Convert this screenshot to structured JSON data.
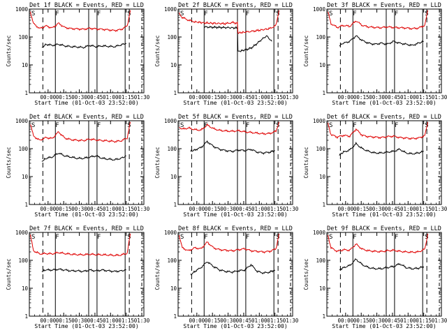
{
  "figure": {
    "ylabel": "Counts/sec",
    "xlabel": "Start Time (01-Oct-03 23:52:00)",
    "x_ticks": [
      "00:00",
      "00:15",
      "00:30",
      "00:45",
      "01:00",
      "01:15",
      "01:30"
    ],
    "y_ticks": [
      "1",
      "10",
      "100",
      "1000"
    ],
    "marker_labels": {
      "saa_start": "S",
      "flare": "F",
      "saa_end": "S"
    },
    "colors": {
      "events": "#000000",
      "lld": "#e00000"
    }
  },
  "chart_data": [
    {
      "type": "line",
      "title": "Det 1f BLACK = Events, RED = LLD",
      "ylim": [
        1,
        1000
      ],
      "yscale": "log",
      "xlim_minutes": [
        -10,
        100
      ],
      "x_ticks_minutes": [
        8,
        23,
        38,
        53,
        68,
        83,
        98
      ],
      "markers": {
        "dashed": [
          3,
          86
        ],
        "dotted": [
          98
        ],
        "solid": [
          15,
          47,
          55,
          82
        ],
        "labels": [
          {
            "x": -8,
            "text": "S"
          },
          {
            "x": 15,
            "text": "F"
          },
          {
            "x": 55,
            "text": "F"
          },
          {
            "x": 84,
            "text": "S"
          }
        ]
      },
      "series": [
        {
          "role": "events",
          "x": [
            2,
            6,
            12,
            18,
            24,
            30,
            36,
            42,
            48,
            54,
            60,
            66,
            72,
            78,
            83
          ],
          "y": [
            40,
            55,
            50,
            55,
            48,
            45,
            44,
            42,
            50,
            45,
            48,
            46,
            45,
            52,
            60
          ]
        },
        {
          "role": "lld",
          "x": [
            -9,
            -6,
            0,
            6,
            12,
            18,
            24,
            30,
            36,
            42,
            48,
            54,
            60,
            66,
            72,
            78,
            84,
            87
          ],
          "y": [
            800,
            300,
            200,
            250,
            210,
            310,
            220,
            200,
            195,
            190,
            205,
            195,
            190,
            180,
            170,
            185,
            250,
            900
          ]
        }
      ]
    },
    {
      "type": "line",
      "title": "Det 2f BLACK = Events, RED = LLD",
      "ylim": [
        1,
        1000
      ],
      "yscale": "log",
      "xlim_minutes": [
        -10,
        100
      ],
      "x_ticks_minutes": [
        8,
        23,
        38,
        53,
        68,
        83,
        98
      ],
      "markers": {
        "dashed": [
          3,
          86
        ],
        "dotted": [
          98
        ],
        "solid": [
          15,
          47,
          55,
          82
        ],
        "labels": [
          {
            "x": -8,
            "text": "S"
          },
          {
            "x": 15,
            "text": "F"
          },
          {
            "x": 55,
            "text": "F"
          },
          {
            "x": 84,
            "text": "S"
          }
        ]
      },
      "series": [
        {
          "role": "events",
          "x": [
            15,
            20,
            30,
            40,
            47,
            47.5,
            55,
            60,
            65,
            70,
            75,
            80
          ],
          "y": [
            230,
            225,
            220,
            215,
            210,
            30,
            35,
            40,
            55,
            80,
            110,
            70
          ]
        },
        {
          "role": "lld",
          "x": [
            -9,
            -6,
            0,
            6,
            15,
            24,
            36,
            42,
            47,
            47.5,
            55,
            66,
            78,
            84,
            87
          ],
          "y": [
            700,
            500,
            400,
            350,
            320,
            310,
            300,
            330,
            310,
            140,
            150,
            170,
            200,
            260,
            900
          ]
        }
      ]
    },
    {
      "type": "line",
      "title": "Det 3f BLACK = Events, RED = LLD",
      "ylim": [
        1,
        1000
      ],
      "yscale": "log",
      "xlim_minutes": [
        -10,
        100
      ],
      "x_ticks_minutes": [
        8,
        23,
        38,
        53,
        68,
        83,
        98
      ],
      "markers": {
        "dashed": [
          3,
          86
        ],
        "dotted": [
          98
        ],
        "solid": [
          15,
          47,
          55,
          82
        ],
        "labels": [
          {
            "x": -8,
            "text": "S"
          },
          {
            "x": 15,
            "text": "F"
          },
          {
            "x": 55,
            "text": "F"
          },
          {
            "x": 84,
            "text": "S"
          }
        ]
      },
      "series": [
        {
          "role": "events",
          "x": [
            2,
            6,
            12,
            18,
            24,
            30,
            36,
            42,
            48,
            54,
            60,
            66,
            72,
            78,
            83
          ],
          "y": [
            50,
            60,
            70,
            110,
            75,
            60,
            55,
            60,
            55,
            70,
            60,
            55,
            50,
            60,
            70
          ]
        },
        {
          "role": "lld",
          "x": [
            -9,
            -6,
            0,
            6,
            12,
            18,
            24,
            30,
            36,
            42,
            48,
            54,
            60,
            66,
            72,
            78,
            84,
            87
          ],
          "y": [
            800,
            300,
            220,
            260,
            240,
            380,
            260,
            230,
            220,
            215,
            230,
            220,
            215,
            210,
            200,
            210,
            260,
            900
          ]
        }
      ]
    },
    {
      "type": "line",
      "title": "Det 4f BLACK = Events, RED = LLD",
      "ylim": [
        1,
        1000
      ],
      "yscale": "log",
      "xlim_minutes": [
        -10,
        100
      ],
      "x_ticks_minutes": [
        8,
        23,
        38,
        53,
        68,
        83,
        98
      ],
      "markers": {
        "dashed": [
          3,
          86
        ],
        "dotted": [
          98
        ],
        "solid": [
          15,
          47,
          55,
          82
        ],
        "labels": [
          {
            "x": -8,
            "text": "S"
          },
          {
            "x": 15,
            "text": "F"
          },
          {
            "x": 55,
            "text": "F"
          },
          {
            "x": 84,
            "text": "S"
          }
        ]
      },
      "series": [
        {
          "role": "events",
          "x": [
            2,
            6,
            12,
            18,
            24,
            30,
            36,
            42,
            48,
            54,
            60,
            66,
            72,
            78,
            83
          ],
          "y": [
            35,
            45,
            50,
            70,
            55,
            50,
            45,
            45,
            50,
            55,
            45,
            42,
            40,
            45,
            55
          ]
        },
        {
          "role": "lld",
          "x": [
            -9,
            -6,
            0,
            6,
            12,
            18,
            24,
            30,
            36,
            42,
            48,
            54,
            60,
            66,
            72,
            78,
            84,
            87
          ],
          "y": [
            800,
            280,
            200,
            250,
            230,
            400,
            240,
            210,
            200,
            195,
            220,
            205,
            195,
            190,
            180,
            190,
            240,
            900
          ]
        }
      ]
    },
    {
      "type": "line",
      "title": "Det 5f BLACK = Events, RED = LLD",
      "ylim": [
        1,
        1000
      ],
      "yscale": "log",
      "xlim_minutes": [
        -10,
        100
      ],
      "x_ticks_minutes": [
        8,
        23,
        38,
        53,
        68,
        83,
        98
      ],
      "markers": {
        "dashed": [
          3,
          86
        ],
        "dotted": [
          98
        ],
        "solid": [
          15,
          47,
          55,
          82
        ],
        "labels": [
          {
            "x": -8,
            "text": "S"
          },
          {
            "x": 15,
            "text": "F"
          },
          {
            "x": 55,
            "text": "F"
          },
          {
            "x": 84,
            "text": "S"
          }
        ]
      },
      "series": [
        {
          "role": "events",
          "x": [
            2,
            6,
            12,
            18,
            24,
            30,
            36,
            42,
            48,
            54,
            60,
            66,
            72,
            78,
            83
          ],
          "y": [
            80,
            90,
            110,
            180,
            120,
            95,
            85,
            80,
            90,
            85,
            95,
            75,
            70,
            75,
            85
          ]
        },
        {
          "role": "lld",
          "x": [
            -9,
            -6,
            0,
            6,
            12,
            18,
            24,
            30,
            36,
            42,
            48,
            54,
            60,
            66,
            72,
            78,
            84,
            87
          ],
          "y": [
            600,
            500,
            550,
            480,
            460,
            700,
            520,
            450,
            430,
            420,
            440,
            400,
            380,
            360,
            340,
            350,
            420,
            900
          ]
        }
      ]
    },
    {
      "type": "line",
      "title": "Det 6f BLACK = Events, RED = LLD",
      "ylim": [
        1,
        1000
      ],
      "yscale": "log",
      "xlim_minutes": [
        -10,
        100
      ],
      "x_ticks_minutes": [
        8,
        23,
        38,
        53,
        68,
        83,
        98
      ],
      "markers": {
        "dashed": [
          3,
          86
        ],
        "dotted": [
          98
        ],
        "solid": [
          15,
          47,
          55,
          82
        ],
        "labels": [
          {
            "x": -8,
            "text": "S"
          },
          {
            "x": 15,
            "text": "F"
          },
          {
            "x": 55,
            "text": "F"
          },
          {
            "x": 84,
            "text": "S"
          }
        ]
      },
      "series": [
        {
          "role": "events",
          "x": [
            2,
            6,
            12,
            18,
            24,
            30,
            36,
            42,
            48,
            54,
            60,
            66,
            72,
            78,
            83
          ],
          "y": [
            60,
            75,
            90,
            150,
            100,
            80,
            70,
            70,
            75,
            80,
            95,
            70,
            65,
            70,
            80
          ]
        },
        {
          "role": "lld",
          "x": [
            -9,
            -6,
            0,
            6,
            12,
            18,
            24,
            30,
            36,
            42,
            48,
            54,
            60,
            66,
            72,
            78,
            84,
            87
          ],
          "y": [
            800,
            320,
            260,
            300,
            280,
            500,
            300,
            270,
            260,
            250,
            270,
            280,
            250,
            240,
            230,
            240,
            290,
            900
          ]
        }
      ]
    },
    {
      "type": "line",
      "title": "Det 7f BLACK = Events, RED = LLD",
      "ylim": [
        1,
        1000
      ],
      "yscale": "log",
      "xlim_minutes": [
        -10,
        100
      ],
      "x_ticks_minutes": [
        8,
        23,
        38,
        53,
        68,
        83,
        98
      ],
      "markers": {
        "dashed": [
          3,
          86
        ],
        "dotted": [
          98
        ],
        "solid": [
          15,
          47,
          55,
          82
        ],
        "labels": [
          {
            "x": -8,
            "text": "S"
          },
          {
            "x": 15,
            "text": "F"
          },
          {
            "x": 55,
            "text": "F"
          },
          {
            "x": 84,
            "text": "S"
          }
        ]
      },
      "series": [
        {
          "role": "events",
          "x": [
            2,
            6,
            12,
            18,
            24,
            30,
            36,
            42,
            48,
            54,
            60,
            66,
            72,
            78,
            83
          ],
          "y": [
            40,
            45,
            45,
            48,
            45,
            42,
            42,
            40,
            45,
            42,
            45,
            42,
            40,
            42,
            45
          ]
        },
        {
          "role": "lld",
          "x": [
            -9,
            -6,
            0,
            6,
            12,
            18,
            24,
            30,
            36,
            42,
            48,
            54,
            60,
            66,
            72,
            78,
            84,
            87
          ],
          "y": [
            800,
            220,
            170,
            175,
            170,
            190,
            175,
            165,
            160,
            158,
            165,
            160,
            158,
            155,
            150,
            155,
            180,
            900
          ]
        }
      ]
    },
    {
      "type": "line",
      "title": "Det 8f BLACK = Events, RED = LLD",
      "ylim": [
        1,
        1000
      ],
      "yscale": "log",
      "xlim_minutes": [
        -10,
        100
      ],
      "x_ticks_minutes": [
        8,
        23,
        38,
        53,
        68,
        83,
        98
      ],
      "markers": {
        "dashed": [
          3,
          86
        ],
        "dotted": [
          98
        ],
        "solid": [
          15,
          47,
          55,
          82
        ],
        "labels": [
          {
            "x": -8,
            "text": "S"
          },
          {
            "x": 15,
            "text": "F"
          },
          {
            "x": 55,
            "text": "F"
          },
          {
            "x": 84,
            "text": "S"
          }
        ]
      },
      "series": [
        {
          "role": "events",
          "x": [
            2,
            6,
            12,
            18,
            24,
            30,
            36,
            42,
            48,
            54,
            60,
            66,
            72,
            78,
            83
          ],
          "y": [
            30,
            40,
            55,
            90,
            60,
            45,
            40,
            38,
            42,
            45,
            70,
            40,
            35,
            38,
            45
          ]
        },
        {
          "role": "lld",
          "x": [
            -9,
            -6,
            0,
            6,
            12,
            18,
            24,
            30,
            36,
            42,
            48,
            54,
            60,
            66,
            72,
            78,
            84,
            87
          ],
          "y": [
            800,
            280,
            220,
            280,
            260,
            450,
            280,
            240,
            230,
            220,
            240,
            260,
            220,
            210,
            200,
            210,
            260,
            900
          ]
        }
      ]
    },
    {
      "type": "line",
      "title": "Det 9f BLACK = Events, RED = LLD",
      "ylim": [
        1,
        1000
      ],
      "yscale": "log",
      "xlim_minutes": [
        -10,
        100
      ],
      "x_ticks_minutes": [
        8,
        23,
        38,
        53,
        68,
        83,
        98
      ],
      "markers": {
        "dashed": [
          3,
          86
        ],
        "dotted": [
          98
        ],
        "solid": [
          15,
          47,
          55,
          82
        ],
        "labels": [
          {
            "x": -8,
            "text": "S"
          },
          {
            "x": 15,
            "text": "F"
          },
          {
            "x": 55,
            "text": "F"
          },
          {
            "x": 84,
            "text": "S"
          }
        ]
      },
      "series": [
        {
          "role": "events",
          "x": [
            2,
            6,
            12,
            18,
            24,
            30,
            36,
            42,
            48,
            54,
            60,
            66,
            72,
            78,
            83
          ],
          "y": [
            45,
            55,
            65,
            110,
            70,
            55,
            50,
            50,
            55,
            60,
            75,
            55,
            50,
            52,
            60
          ]
        },
        {
          "role": "lld",
          "x": [
            -9,
            -6,
            0,
            6,
            12,
            18,
            24,
            30,
            36,
            42,
            48,
            54,
            60,
            66,
            72,
            78,
            84,
            87
          ],
          "y": [
            800,
            280,
            210,
            240,
            230,
            380,
            250,
            220,
            210,
            205,
            220,
            230,
            210,
            200,
            195,
            200,
            250,
            900
          ]
        }
      ]
    }
  ]
}
